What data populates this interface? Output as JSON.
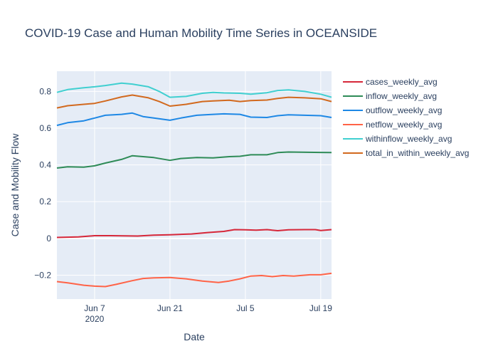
{
  "chart_data": {
    "type": "line",
    "title": "COVID-19 Case and Human Mobility Time Series in OCEANSIDE",
    "xlabel": "Date",
    "ylabel": "Case and Mobility Flow",
    "xlim": [
      "2020-05-31",
      "2020-07-21"
    ],
    "ylim": [
      -0.33,
      0.91
    ],
    "x_ticks": [
      {
        "date": "2020-06-07",
        "label": "Jun 7",
        "sublabel": "2020"
      },
      {
        "date": "2020-06-21",
        "label": "Jun 21",
        "sublabel": ""
      },
      {
        "date": "2020-07-05",
        "label": "Jul 5",
        "sublabel": ""
      },
      {
        "date": "2020-07-19",
        "label": "Jul 19",
        "sublabel": ""
      }
    ],
    "y_ticks": [
      -0.2,
      0,
      0.2,
      0.4,
      0.6,
      0.8
    ],
    "y_tick_labels": [
      "−0.2",
      "0",
      "0.2",
      "0.4",
      "0.6",
      "0.8"
    ],
    "legend_position": "right",
    "grid": true,
    "series": [
      {
        "name": "cases_weekly_avg",
        "color": "#d62739",
        "points": [
          [
            "2020-05-31",
            0.005
          ],
          [
            "2020-06-04",
            0.008
          ],
          [
            "2020-06-07",
            0.015
          ],
          [
            "2020-06-10",
            0.015
          ],
          [
            "2020-06-15",
            0.013
          ],
          [
            "2020-06-18",
            0.018
          ],
          [
            "2020-06-21",
            0.02
          ],
          [
            "2020-06-25",
            0.024
          ],
          [
            "2020-06-28",
            0.032
          ],
          [
            "2020-07-01",
            0.038
          ],
          [
            "2020-07-03",
            0.048
          ],
          [
            "2020-07-05",
            0.047
          ],
          [
            "2020-07-07",
            0.045
          ],
          [
            "2020-07-09",
            0.048
          ],
          [
            "2020-07-11",
            0.042
          ],
          [
            "2020-07-13",
            0.047
          ],
          [
            "2020-07-16",
            0.048
          ],
          [
            "2020-07-18",
            0.048
          ],
          [
            "2020-07-19",
            0.043
          ],
          [
            "2020-07-21",
            0.048
          ]
        ]
      },
      {
        "name": "inflow_weekly_avg",
        "color": "#2e8b57",
        "points": [
          [
            "2020-05-31",
            0.383
          ],
          [
            "2020-06-02",
            0.39
          ],
          [
            "2020-06-05",
            0.388
          ],
          [
            "2020-06-07",
            0.395
          ],
          [
            "2020-06-09",
            0.41
          ],
          [
            "2020-06-12",
            0.43
          ],
          [
            "2020-06-14",
            0.45
          ],
          [
            "2020-06-16",
            0.445
          ],
          [
            "2020-06-18",
            0.44
          ],
          [
            "2020-06-21",
            0.425
          ],
          [
            "2020-06-23",
            0.435
          ],
          [
            "2020-06-26",
            0.44
          ],
          [
            "2020-06-29",
            0.438
          ],
          [
            "2020-07-02",
            0.445
          ],
          [
            "2020-07-04",
            0.447
          ],
          [
            "2020-07-06",
            0.455
          ],
          [
            "2020-07-09",
            0.455
          ],
          [
            "2020-07-11",
            0.467
          ],
          [
            "2020-07-13",
            0.47
          ],
          [
            "2020-07-19",
            0.468
          ],
          [
            "2020-07-21",
            0.467
          ]
        ]
      },
      {
        "name": "outflow_weekly_avg",
        "color": "#1e88e5",
        "points": [
          [
            "2020-05-31",
            0.615
          ],
          [
            "2020-06-02",
            0.63
          ],
          [
            "2020-06-05",
            0.64
          ],
          [
            "2020-06-07",
            0.655
          ],
          [
            "2020-06-09",
            0.67
          ],
          [
            "2020-06-12",
            0.675
          ],
          [
            "2020-06-14",
            0.682
          ],
          [
            "2020-06-16",
            0.663
          ],
          [
            "2020-06-18",
            0.655
          ],
          [
            "2020-06-21",
            0.643
          ],
          [
            "2020-06-23",
            0.655
          ],
          [
            "2020-06-26",
            0.67
          ],
          [
            "2020-06-29",
            0.675
          ],
          [
            "2020-07-01",
            0.678
          ],
          [
            "2020-07-04",
            0.675
          ],
          [
            "2020-07-06",
            0.66
          ],
          [
            "2020-07-09",
            0.658
          ],
          [
            "2020-07-11",
            0.668
          ],
          [
            "2020-07-13",
            0.673
          ],
          [
            "2020-07-16",
            0.67
          ],
          [
            "2020-07-19",
            0.668
          ],
          [
            "2020-07-21",
            0.658
          ]
        ]
      },
      {
        "name": "netflow_weekly_avg",
        "color": "#ff6347",
        "points": [
          [
            "2020-05-31",
            -0.235
          ],
          [
            "2020-06-02",
            -0.242
          ],
          [
            "2020-06-05",
            -0.255
          ],
          [
            "2020-06-07",
            -0.26
          ],
          [
            "2020-06-09",
            -0.262
          ],
          [
            "2020-06-11",
            -0.25
          ],
          [
            "2020-06-14",
            -0.23
          ],
          [
            "2020-06-16",
            -0.218
          ],
          [
            "2020-06-18",
            -0.215
          ],
          [
            "2020-06-21",
            -0.213
          ],
          [
            "2020-06-24",
            -0.22
          ],
          [
            "2020-06-27",
            -0.232
          ],
          [
            "2020-06-30",
            -0.24
          ],
          [
            "2020-07-02",
            -0.232
          ],
          [
            "2020-07-04",
            -0.22
          ],
          [
            "2020-07-06",
            -0.205
          ],
          [
            "2020-07-08",
            -0.202
          ],
          [
            "2020-07-10",
            -0.208
          ],
          [
            "2020-07-12",
            -0.202
          ],
          [
            "2020-07-14",
            -0.205
          ],
          [
            "2020-07-17",
            -0.198
          ],
          [
            "2020-07-19",
            -0.198
          ],
          [
            "2020-07-21",
            -0.19
          ]
        ]
      },
      {
        "name": "withinflow_weekly_avg",
        "color": "#40cfd0",
        "points": [
          [
            "2020-05-31",
            0.795
          ],
          [
            "2020-06-02",
            0.81
          ],
          [
            "2020-06-05",
            0.82
          ],
          [
            "2020-06-07",
            0.825
          ],
          [
            "2020-06-09",
            0.832
          ],
          [
            "2020-06-12",
            0.845
          ],
          [
            "2020-06-14",
            0.84
          ],
          [
            "2020-06-17",
            0.825
          ],
          [
            "2020-06-19",
            0.8
          ],
          [
            "2020-06-21",
            0.768
          ],
          [
            "2020-06-24",
            0.773
          ],
          [
            "2020-06-27",
            0.79
          ],
          [
            "2020-06-29",
            0.795
          ],
          [
            "2020-07-01",
            0.792
          ],
          [
            "2020-07-04",
            0.79
          ],
          [
            "2020-07-06",
            0.785
          ],
          [
            "2020-07-09",
            0.793
          ],
          [
            "2020-07-11",
            0.805
          ],
          [
            "2020-07-13",
            0.808
          ],
          [
            "2020-07-16",
            0.8
          ],
          [
            "2020-07-19",
            0.785
          ],
          [
            "2020-07-21",
            0.768
          ]
        ]
      },
      {
        "name": "total_in_within_weekly_avg",
        "color": "#d2691e",
        "points": [
          [
            "2020-05-31",
            0.71
          ],
          [
            "2020-06-02",
            0.722
          ],
          [
            "2020-06-05",
            0.73
          ],
          [
            "2020-06-07",
            0.735
          ],
          [
            "2020-06-09",
            0.748
          ],
          [
            "2020-06-12",
            0.77
          ],
          [
            "2020-06-14",
            0.78
          ],
          [
            "2020-06-17",
            0.765
          ],
          [
            "2020-06-19",
            0.745
          ],
          [
            "2020-06-21",
            0.72
          ],
          [
            "2020-06-24",
            0.73
          ],
          [
            "2020-06-27",
            0.745
          ],
          [
            "2020-06-29",
            0.748
          ],
          [
            "2020-07-02",
            0.752
          ],
          [
            "2020-07-04",
            0.745
          ],
          [
            "2020-07-06",
            0.75
          ],
          [
            "2020-07-09",
            0.753
          ],
          [
            "2020-07-11",
            0.762
          ],
          [
            "2020-07-13",
            0.768
          ],
          [
            "2020-07-16",
            0.765
          ],
          [
            "2020-07-19",
            0.76
          ],
          [
            "2020-07-21",
            0.745
          ]
        ]
      }
    ]
  }
}
